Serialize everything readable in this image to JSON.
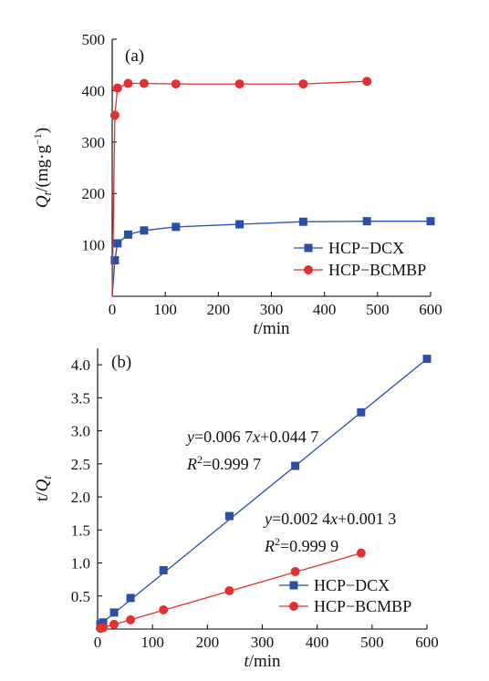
{
  "chart_data": [
    {
      "type": "line",
      "panel_label": "(a)",
      "xlabel": "t/min",
      "ylabel": "Q_t/(mg·g⁻¹)",
      "xlim": [
        0,
        600
      ],
      "ylim": [
        0,
        500
      ],
      "x_ticks": [
        0,
        100,
        200,
        300,
        400,
        500,
        600
      ],
      "y_ticks": [
        100,
        200,
        300,
        400,
        500
      ],
      "grid": false,
      "legend_position": "right",
      "series": [
        {
          "name": "HCP−DCX",
          "color": "#2a4fa8",
          "marker": "square",
          "x": [
            0,
            5,
            10,
            30,
            60,
            120,
            240,
            360,
            480,
            600
          ],
          "y": [
            0,
            70,
            103,
            120,
            128,
            135,
            140,
            145,
            146,
            146
          ]
        },
        {
          "name": "HCP−BCMBP",
          "color": "#e3312f",
          "marker": "circle",
          "x": [
            0,
            5,
            10,
            30,
            60,
            120,
            240,
            360,
            480
          ],
          "y": [
            0,
            352,
            405,
            414,
            414,
            413,
            413,
            413,
            418
          ]
        }
      ]
    },
    {
      "type": "scatter",
      "panel_label": "(b)",
      "xlabel": "t/min",
      "ylabel": "t/Q_t",
      "xlim": [
        0,
        600
      ],
      "ylim": [
        0,
        4.25
      ],
      "x_ticks": [
        0,
        100,
        200,
        300,
        400,
        500,
        600
      ],
      "y_ticks": [
        0.5,
        1.0,
        1.5,
        2.0,
        2.5,
        3.0,
        3.5,
        4.0
      ],
      "grid": false,
      "legend_position": "bottom-right",
      "series": [
        {
          "name": "HCP−DCX",
          "color": "#2a4fa8",
          "marker": "square",
          "x": [
            5,
            10,
            30,
            60,
            120,
            240,
            360,
            480,
            600
          ],
          "y": [
            0.07,
            0.1,
            0.25,
            0.47,
            0.89,
            1.71,
            2.47,
            3.28,
            4.09
          ]
        },
        {
          "name": "HCP−BCMBP",
          "color": "#e3312f",
          "marker": "circle",
          "x": [
            5,
            10,
            30,
            60,
            120,
            240,
            360,
            480
          ],
          "y": [
            0.01,
            0.02,
            0.07,
            0.14,
            0.29,
            0.58,
            0.87,
            1.15
          ]
        }
      ],
      "annotations": [
        {
          "equation": "y=0.006 7x+0.044 7",
          "r2": "R²=0.999 7"
        },
        {
          "equation": "y=0.002 4x+0.001 3",
          "r2": "R²=0.999 9"
        }
      ]
    }
  ]
}
